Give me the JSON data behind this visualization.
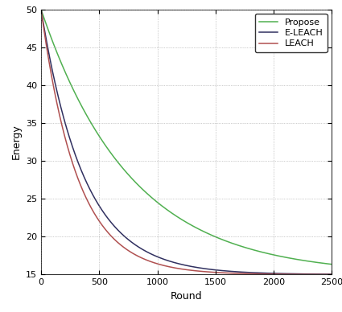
{
  "title": "",
  "xlabel": "Round",
  "ylabel": "Energy",
  "xlim": [
    0,
    2500
  ],
  "ylim": [
    15,
    50
  ],
  "xticks": [
    0,
    500,
    1000,
    1500,
    2000,
    2500
  ],
  "yticks": [
    15,
    20,
    25,
    30,
    35,
    40,
    45,
    50
  ],
  "leach_color": "#b05050",
  "eleach_color": "#303060",
  "propose_color": "#50b050",
  "leach_label": "LEACH",
  "eleach_label": "E-LEACH",
  "propose_label": "Propose",
  "leach_decay": 0.0032,
  "eleach_decay": 0.0027,
  "propose_decay": 0.0013,
  "energy_start": 50,
  "energy_min": 15,
  "bg_color": "#ffffff",
  "grid_color": "#888888",
  "legend_fontsize": 8,
  "axis_fontsize": 9,
  "tick_fontsize": 8,
  "linewidth": 1.1
}
